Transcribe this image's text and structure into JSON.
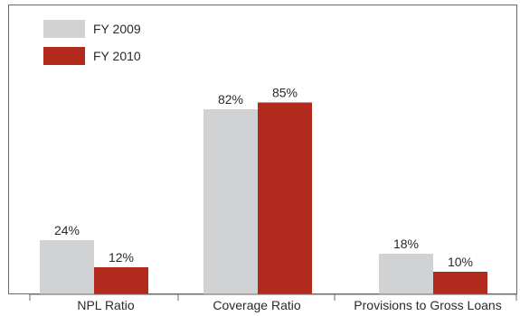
{
  "chart_data": {
    "type": "bar",
    "categories": [
      "NPL Ratio",
      "Coverage Ratio",
      "Provisions to Gross Loans"
    ],
    "series": [
      {
        "name": "FY 2009",
        "values": [
          24,
          82,
          18
        ],
        "labels": [
          "24%",
          "82%",
          "18%"
        ],
        "color": "#d1d2d3"
      },
      {
        "name": "FY 2010",
        "values": [
          12,
          85,
          10
        ],
        "labels": [
          "12%",
          "85%",
          "10%"
        ],
        "color": "#b22a1e"
      }
    ],
    "unit": "%",
    "ylim": [
      0,
      100
    ],
    "grid": false,
    "legend": "top-left",
    "frame_color": "#6a6a6a"
  }
}
